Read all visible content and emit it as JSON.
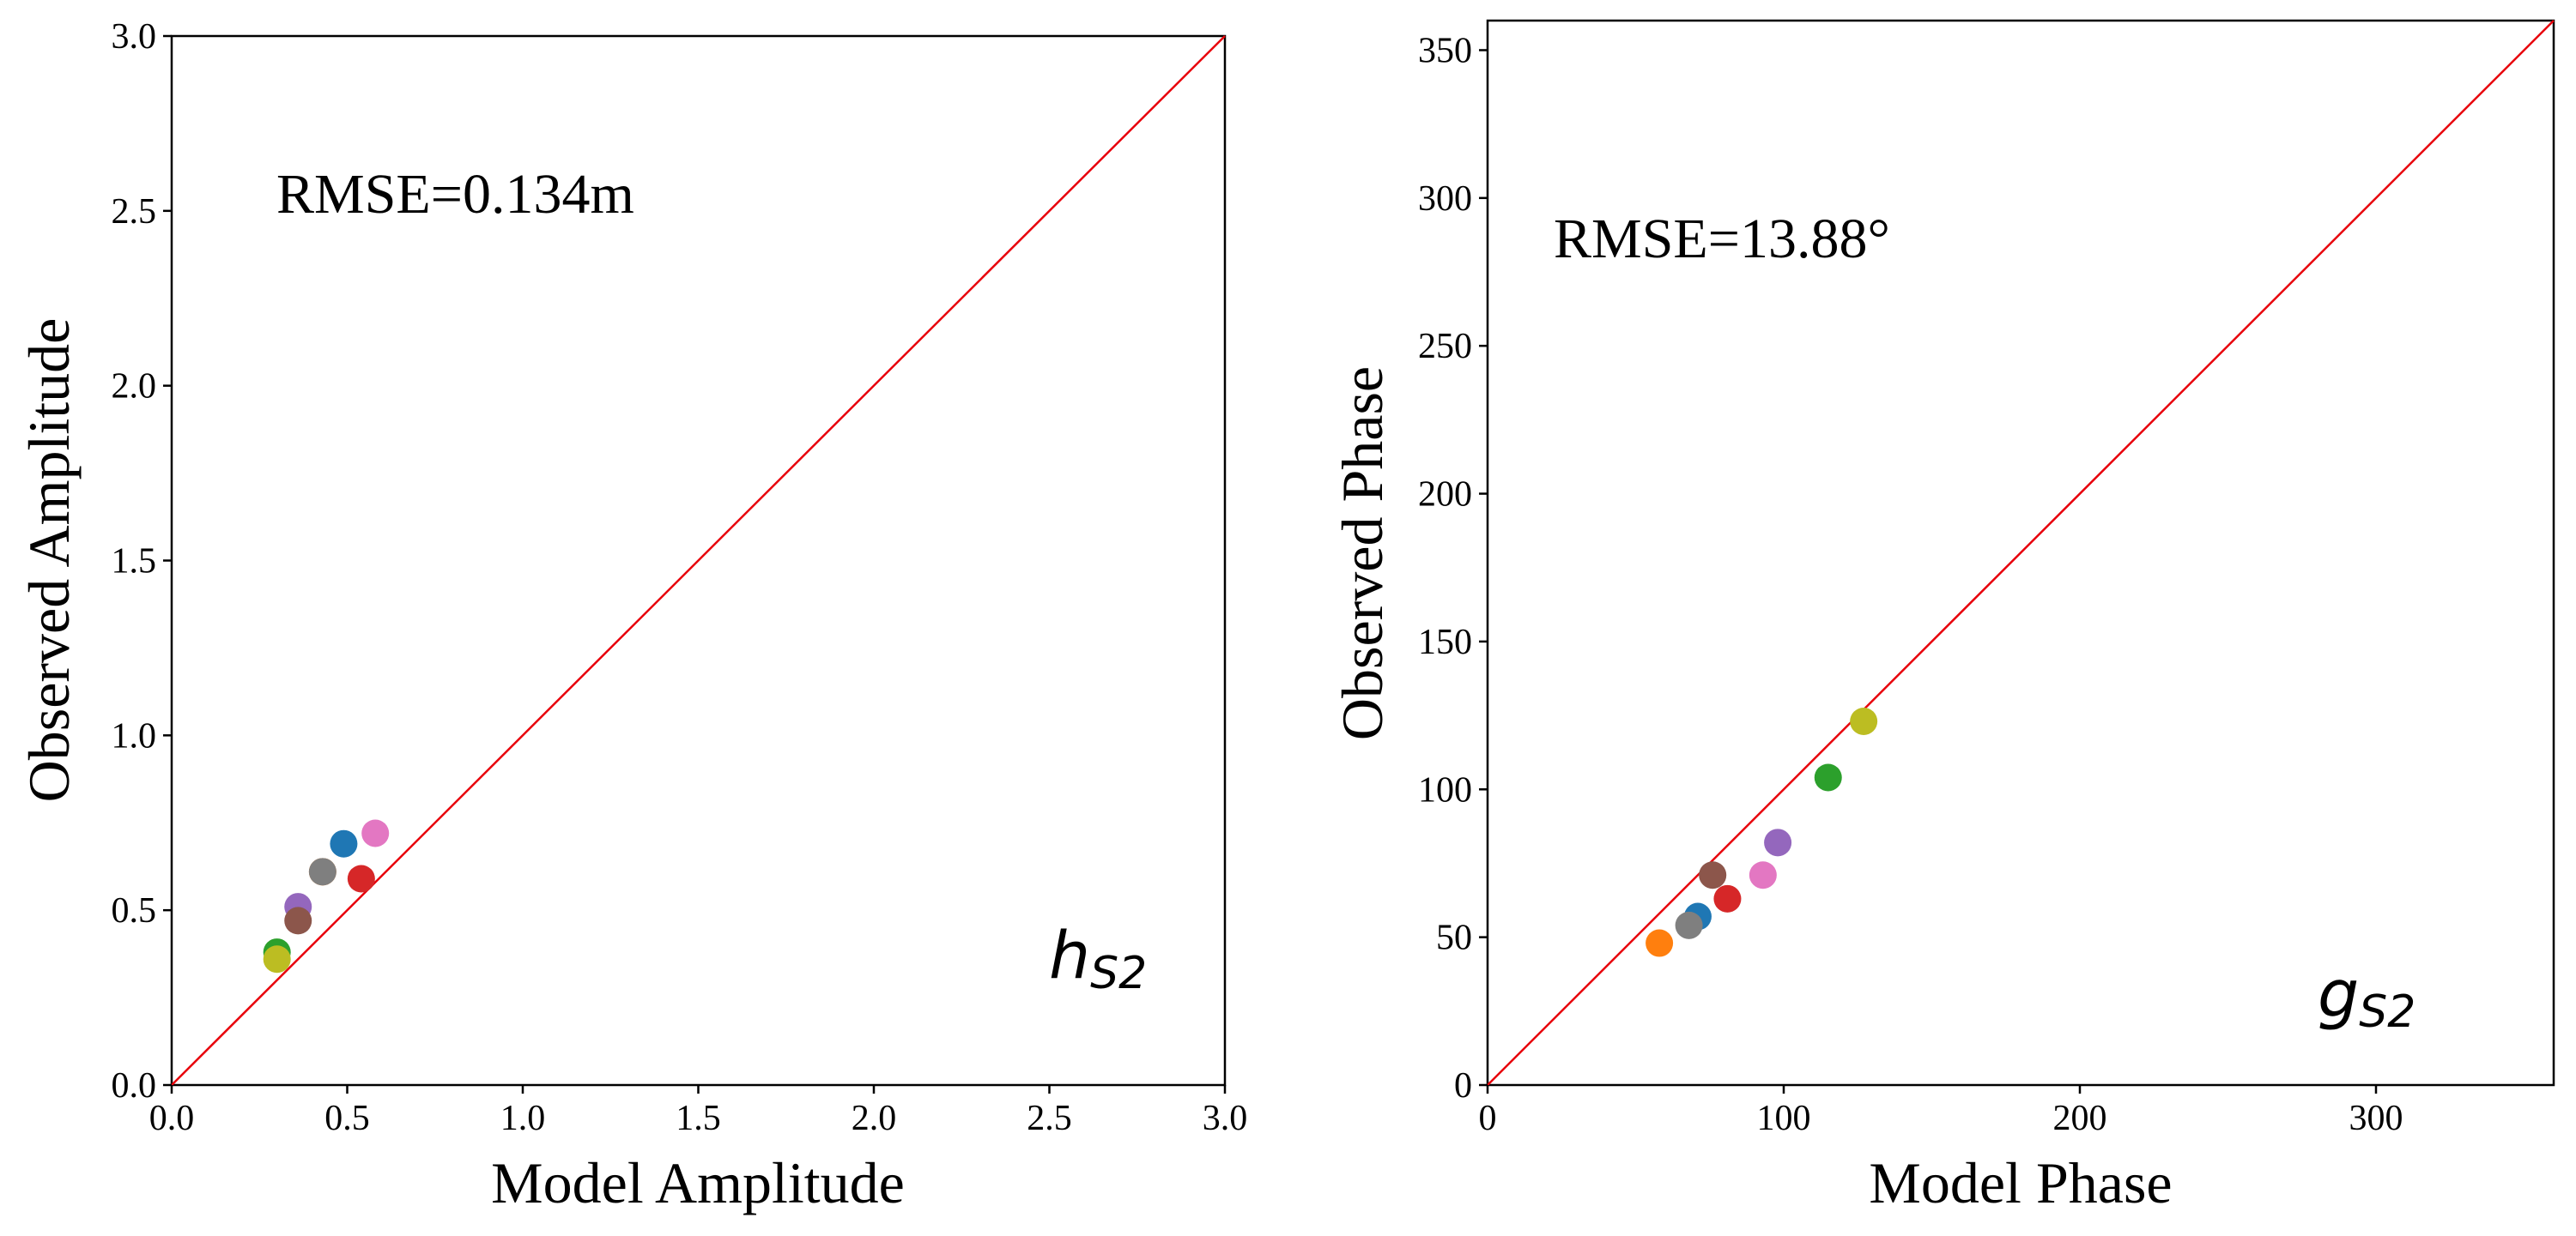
{
  "chart_data": [
    {
      "type": "scatter",
      "xlabel": "Model Amplitude",
      "ylabel": "Observed Amplitude",
      "xlim": [
        0,
        3.0
      ],
      "ylim": [
        0,
        3.0
      ],
      "xticks": [
        "0.0",
        "0.5",
        "1.0",
        "1.5",
        "2.0",
        "2.5",
        "3.0"
      ],
      "yticks": [
        "0.0",
        "0.5",
        "1.0",
        "1.5",
        "2.0",
        "2.5",
        "3.0"
      ],
      "annotation": "RMSE=0.134m",
      "label_main": "h",
      "label_sub": "S2",
      "reference_line": {
        "from": [
          0,
          0
        ],
        "to": [
          3.0,
          3.0
        ],
        "color": "#e8000b"
      },
      "points": [
        {
          "x": 0.49,
          "y": 0.69,
          "color": "#1f77b4"
        },
        {
          "x": 0.43,
          "y": 0.61,
          "color": "#ff7f0e"
        },
        {
          "x": 0.3,
          "y": 0.38,
          "color": "#2ca02c"
        },
        {
          "x": 0.54,
          "y": 0.59,
          "color": "#d62728"
        },
        {
          "x": 0.36,
          "y": 0.51,
          "color": "#9467bd"
        },
        {
          "x": 0.36,
          "y": 0.47,
          "color": "#8c564b"
        },
        {
          "x": 0.58,
          "y": 0.72,
          "color": "#e377c2"
        },
        {
          "x": 0.43,
          "y": 0.61,
          "color": "#7f7f7f"
        },
        {
          "x": 0.3,
          "y": 0.36,
          "color": "#bcbd22"
        }
      ]
    },
    {
      "type": "scatter",
      "xlabel": "Model Phase",
      "ylabel": "Observed Phase",
      "xlim": [
        0,
        360
      ],
      "ylim": [
        0,
        360
      ],
      "xticks": [
        "0",
        "100",
        "200",
        "300"
      ],
      "yticks": [
        "0",
        "50",
        "100",
        "150",
        "200",
        "250",
        "300",
        "350"
      ],
      "annotation": "RMSE=13.88°",
      "label_main": "g",
      "label_sub": "S2",
      "reference_line": {
        "from": [
          0,
          0
        ],
        "to": [
          360,
          360
        ],
        "color": "#e8000b"
      },
      "points": [
        {
          "x": 71,
          "y": 57,
          "color": "#1f77b4"
        },
        {
          "x": 58,
          "y": 48,
          "color": "#ff7f0e"
        },
        {
          "x": 115,
          "y": 104,
          "color": "#2ca02c"
        },
        {
          "x": 81,
          "y": 63,
          "color": "#d62728"
        },
        {
          "x": 98,
          "y": 82,
          "color": "#9467bd"
        },
        {
          "x": 76,
          "y": 71,
          "color": "#8c564b"
        },
        {
          "x": 93,
          "y": 71,
          "color": "#e377c2"
        },
        {
          "x": 68,
          "y": 54,
          "color": "#7f7f7f"
        },
        {
          "x": 127,
          "y": 123,
          "color": "#bcbd22"
        }
      ]
    }
  ]
}
